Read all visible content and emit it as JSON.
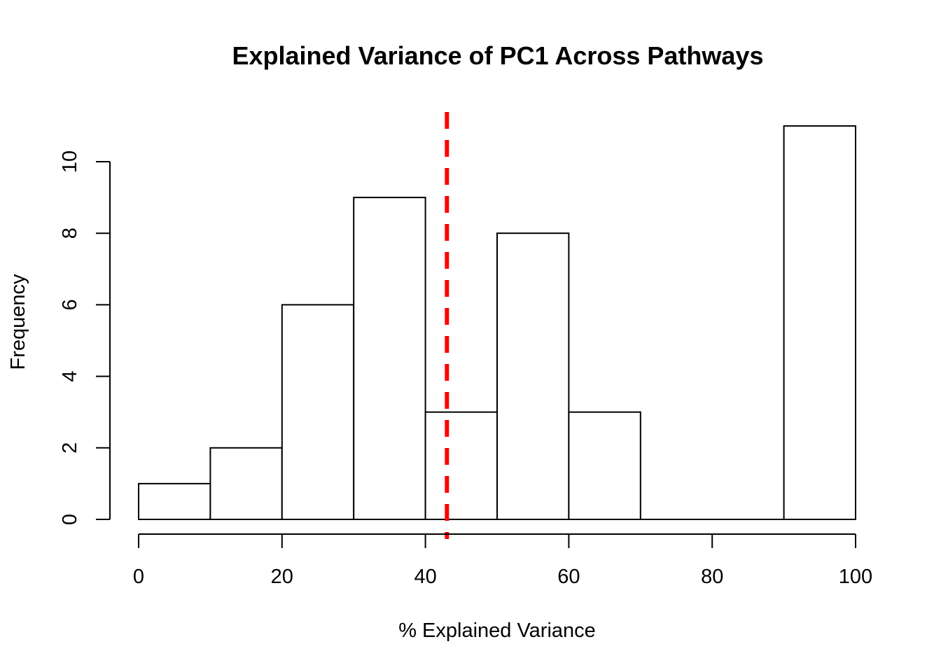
{
  "chart_data": {
    "type": "histogram",
    "title": "Explained Variance of PC1 Across Pathways",
    "xlabel": "% Explained Variance",
    "ylabel": "Frequency",
    "bins": [
      {
        "start": 0,
        "end": 10,
        "count": 1
      },
      {
        "start": 10,
        "end": 20,
        "count": 2
      },
      {
        "start": 20,
        "end": 30,
        "count": 6
      },
      {
        "start": 30,
        "end": 40,
        "count": 9
      },
      {
        "start": 40,
        "end": 50,
        "count": 3
      },
      {
        "start": 50,
        "end": 60,
        "count": 8
      },
      {
        "start": 60,
        "end": 70,
        "count": 3
      },
      {
        "start": 70,
        "end": 80,
        "count": 0
      },
      {
        "start": 80,
        "end": 90,
        "count": 0
      },
      {
        "start": 90,
        "end": 100,
        "count": 11
      }
    ],
    "xlim": [
      0,
      100
    ],
    "ylim": [
      0,
      11
    ],
    "xticks": [
      0,
      20,
      40,
      60,
      80,
      100
    ],
    "yticks": [
      0,
      2,
      4,
      6,
      8,
      10
    ],
    "reference_line": {
      "x": 43,
      "color": "#ff0000",
      "style": "dashed"
    },
    "grid": false
  }
}
